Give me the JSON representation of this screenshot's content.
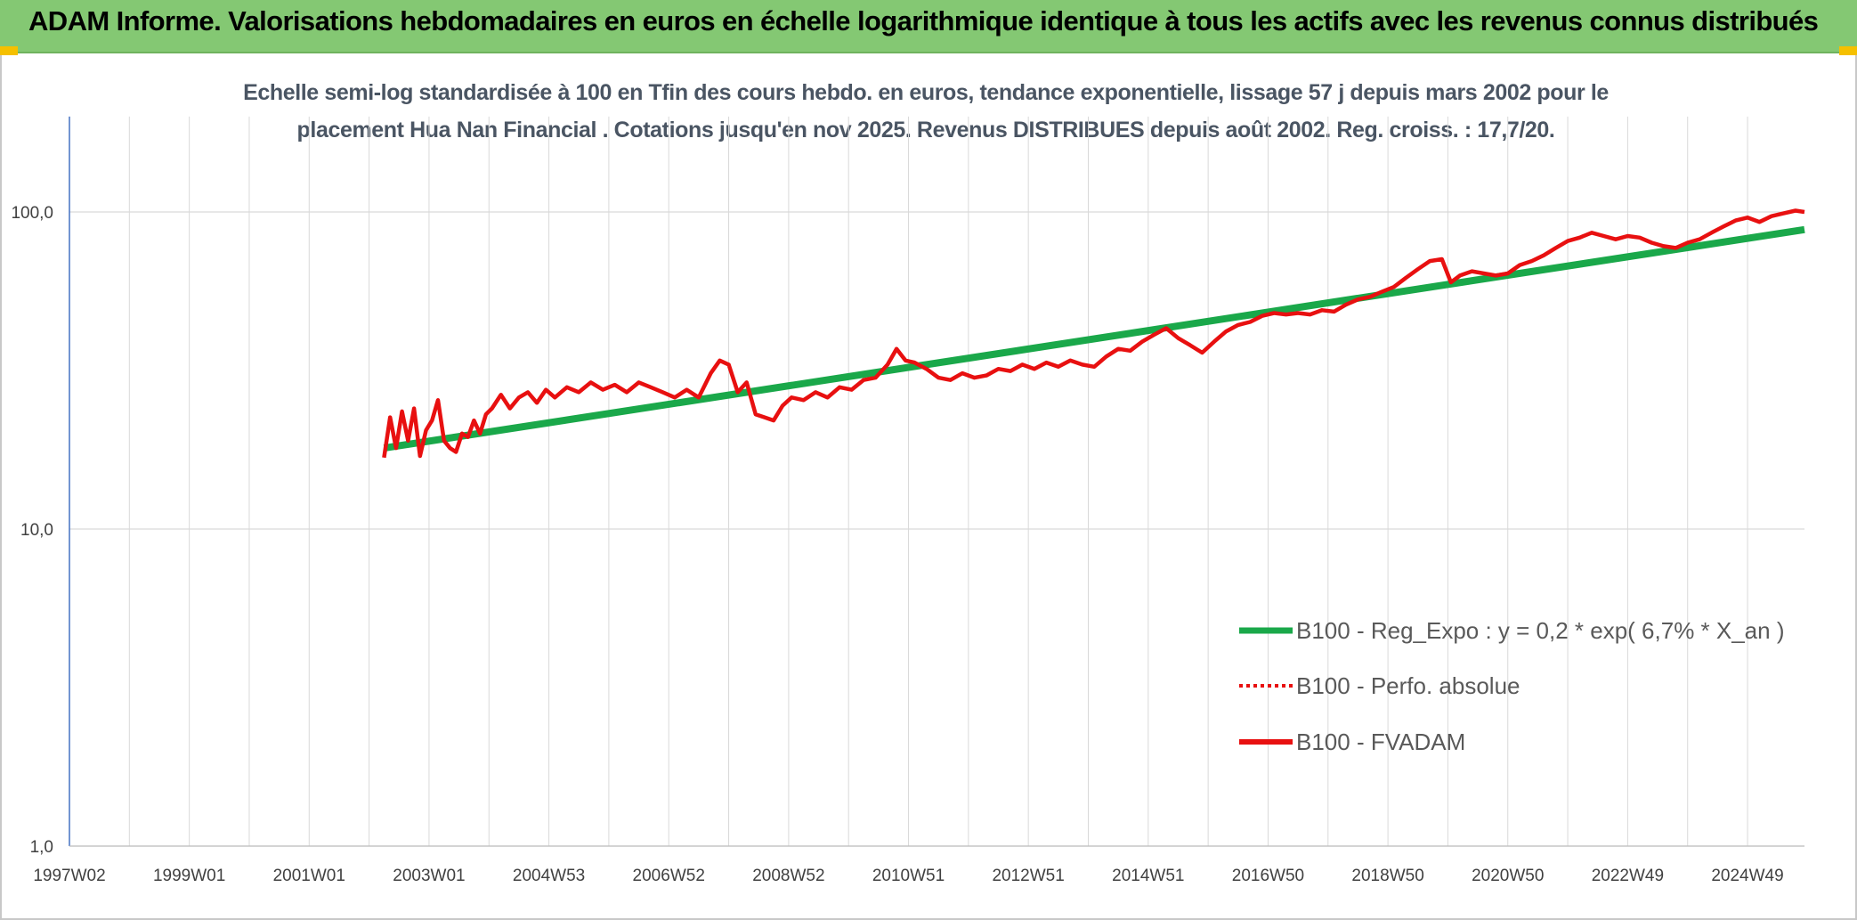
{
  "header": {
    "title": "ADAM Informe. Valorisations hebdomadaires en euros en échelle logarithmique identique à tous les actifs avec les revenus connus distribués"
  },
  "colors": {
    "header_bg": "#84c873",
    "regression": "#1aa84a",
    "perf": "#e81010",
    "fvadam": "#e81010",
    "grid": "#d9d9d9",
    "axis": "#4472c4",
    "corner": "#f5c000"
  },
  "chart_data": {
    "type": "line",
    "title_line1": "Echelle semi-log standardisée à 100 en Tfin des cours hebdo. en euros, tendance exponentielle, lissage 57 j depuis mars 2002 pour le",
    "title_line2": "placement Hua Nan Financial . Cotations jusqu'en nov 2025. Revenus DISTRIBUES depuis août 2002. Reg. croiss. : 17,7/20.",
    "y_scale": "log",
    "ylim": [
      1,
      200
    ],
    "x_range": [
      1997.0,
      2025.95
    ],
    "y_ticks": [
      {
        "value": 1,
        "label": "1,0"
      },
      {
        "value": 10,
        "label": "10,0"
      },
      {
        "value": 100,
        "label": "100,0"
      }
    ],
    "x_ticks": [
      {
        "value": 1997.0,
        "label": "1997W02"
      },
      {
        "value": 1999.0,
        "label": "1999W01"
      },
      {
        "value": 2001.0,
        "label": "2001W01"
      },
      {
        "value": 2003.0,
        "label": "2003W01"
      },
      {
        "value": 2005.0,
        "label": "2004W53"
      },
      {
        "value": 2007.0,
        "label": "2006W52"
      },
      {
        "value": 2009.0,
        "label": "2008W52"
      },
      {
        "value": 2011.0,
        "label": "2010W51"
      },
      {
        "value": 2013.0,
        "label": "2012W51"
      },
      {
        "value": 2015.0,
        "label": "2014W51"
      },
      {
        "value": 2017.0,
        "label": "2016W50"
      },
      {
        "value": 2019.0,
        "label": "2018W50"
      },
      {
        "value": 2021.0,
        "label": "2020W50"
      },
      {
        "value": 2023.0,
        "label": "2022W49"
      },
      {
        "value": 2025.0,
        "label": "2024W49"
      }
    ],
    "grid": true,
    "legend_position": "right-middle",
    "series": [
      {
        "name": "B100 - Reg_Expo : y = 0,2 * exp( 6,7% *  X_an )",
        "style": "solid-thick",
        "x": [
          2002.25,
          2025.95
        ],
        "y": [
          18.0,
          88.0
        ]
      },
      {
        "name": "B100 - Perfo. absolue",
        "style": "dotted",
        "x": [],
        "y": []
      },
      {
        "name": "B100 - FVADAM",
        "style": "solid",
        "x": [
          2002.25,
          2002.35,
          2002.45,
          2002.55,
          2002.65,
          2002.75,
          2002.85,
          2002.95,
          2003.05,
          2003.15,
          2003.25,
          2003.35,
          2003.45,
          2003.55,
          2003.65,
          2003.75,
          2003.85,
          2003.95,
          2004.05,
          2004.2,
          2004.35,
          2004.5,
          2004.65,
          2004.8,
          2004.95,
          2005.1,
          2005.3,
          2005.5,
          2005.7,
          2005.9,
          2006.1,
          2006.3,
          2006.5,
          2006.7,
          2006.9,
          2007.1,
          2007.3,
          2007.5,
          2007.7,
          2007.85,
          2008.0,
          2008.15,
          2008.3,
          2008.45,
          2008.6,
          2008.75,
          2008.9,
          2009.05,
          2009.25,
          2009.45,
          2009.65,
          2009.85,
          2010.05,
          2010.25,
          2010.45,
          2010.65,
          2010.8,
          2010.95,
          2011.1,
          2011.3,
          2011.5,
          2011.7,
          2011.9,
          2012.1,
          2012.3,
          2012.5,
          2012.7,
          2012.9,
          2013.1,
          2013.3,
          2013.5,
          2013.7,
          2013.9,
          2014.1,
          2014.3,
          2014.5,
          2014.7,
          2014.9,
          2015.1,
          2015.3,
          2015.5,
          2015.7,
          2015.9,
          2016.1,
          2016.3,
          2016.5,
          2016.7,
          2016.9,
          2017.1,
          2017.3,
          2017.5,
          2017.7,
          2017.9,
          2018.1,
          2018.3,
          2018.5,
          2018.7,
          2018.9,
          2019.1,
          2019.3,
          2019.5,
          2019.7,
          2019.9,
          2020.05,
          2020.2,
          2020.4,
          2020.6,
          2020.8,
          2021.0,
          2021.2,
          2021.4,
          2021.6,
          2021.8,
          2022.0,
          2022.2,
          2022.4,
          2022.6,
          2022.8,
          2023.0,
          2023.2,
          2023.4,
          2023.6,
          2023.8,
          2024.0,
          2024.2,
          2024.4,
          2024.6,
          2024.8,
          2025.0,
          2025.2,
          2025.4,
          2025.6,
          2025.8,
          2025.95
        ],
        "y": [
          16.8,
          22.5,
          18.0,
          23.5,
          19.0,
          24.0,
          17.0,
          20.5,
          22.0,
          25.5,
          19.0,
          18.0,
          17.5,
          20.0,
          19.5,
          22.0,
          20.0,
          23.0,
          24.0,
          26.5,
          24.0,
          26.0,
          27.0,
          25.0,
          27.5,
          26.0,
          28.0,
          27.0,
          29.0,
          27.5,
          28.5,
          27.0,
          29.0,
          28.0,
          27.0,
          26.0,
          27.5,
          26.0,
          31.0,
          34.0,
          33.0,
          27.0,
          29.0,
          23.0,
          22.5,
          22.0,
          24.5,
          26.0,
          25.5,
          27.0,
          26.0,
          28.0,
          27.5,
          29.5,
          30.0,
          33.0,
          37.0,
          34.0,
          33.5,
          32.0,
          30.0,
          29.5,
          31.0,
          30.0,
          30.5,
          32.0,
          31.5,
          33.0,
          32.0,
          33.5,
          32.5,
          34.0,
          33.0,
          32.5,
          35.0,
          37.0,
          36.5,
          39.0,
          41.0,
          43.0,
          40.0,
          38.0,
          36.0,
          39.0,
          42.0,
          44.0,
          45.0,
          47.0,
          48.0,
          47.5,
          48.0,
          47.5,
          49.0,
          48.5,
          51.0,
          53.0,
          54.0,
          56.0,
          58.0,
          62.0,
          66.0,
          70.0,
          71.0,
          60.0,
          63.0,
          65.0,
          64.0,
          63.0,
          64.0,
          68.0,
          70.0,
          73.0,
          77.0,
          81.0,
          83.0,
          86.0,
          84.0,
          82.0,
          84.0,
          83.0,
          80.0,
          78.0,
          77.0,
          80.0,
          82.0,
          86.0,
          90.0,
          94.0,
          96.0,
          93.0,
          97.0,
          99.0,
          101.0,
          100.0
        ]
      }
    ]
  }
}
